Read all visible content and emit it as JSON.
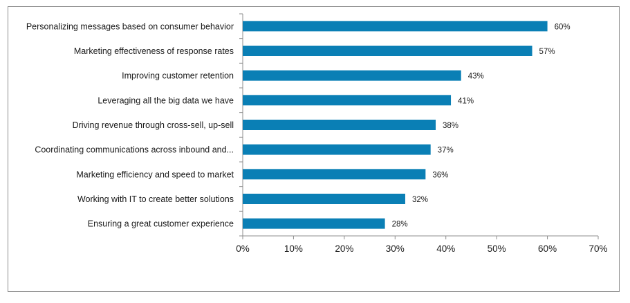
{
  "chart_data": {
    "type": "bar",
    "orientation": "horizontal",
    "title": "",
    "xlabel": "",
    "ylabel": "",
    "categories": [
      "Personalizing messages based on consumer behavior",
      "Marketing effectiveness of response rates",
      "Improving customer retention",
      "Leveraging all the big data we have",
      "Driving revenue through cross-sell, up-sell",
      "Coordinating communications across inbound and...",
      "Marketing efficiency and speed to market",
      "Working with IT to create better solutions",
      "Ensuring a great customer experience"
    ],
    "values": [
      60,
      57,
      43,
      41,
      38,
      37,
      36,
      32,
      28
    ],
    "value_labels": [
      "60%",
      "57%",
      "43%",
      "41%",
      "38%",
      "37%",
      "36%",
      "32%",
      "28%"
    ],
    "xlim": [
      0,
      70
    ],
    "x_ticks": [
      0,
      10,
      20,
      30,
      40,
      50,
      60,
      70
    ],
    "x_tick_labels": [
      "0%",
      "10%",
      "20%",
      "30%",
      "40%",
      "50%",
      "60%",
      "70%"
    ],
    "grid": false,
    "legend": "none",
    "bar_color": "#0a7fb5",
    "axis_color": "#8c8c8c"
  }
}
